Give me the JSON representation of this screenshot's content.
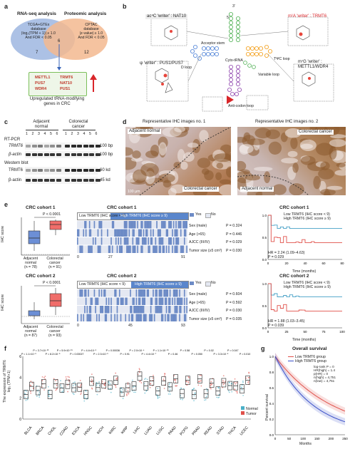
{
  "panels": {
    "a": {
      "label": "a",
      "rna_title": "RNA-seq analysis",
      "prot_title": "Proteomic analysis",
      "rna_db": [
        "TCGA+GTEx",
        "database"
      ],
      "rna_crit": [
        "|log₂(TPM + 1)| ≥ 1.0",
        "And FDR < 0.05"
      ],
      "prot_db": [
        "CPTAC",
        "database"
      ],
      "prot_crit": [
        "|z-value| ≥ 1.0",
        "And FDR < 0.05"
      ],
      "n_left": "7",
      "n_mid": "6",
      "n_right": "12",
      "genes_left": [
        "METTL1",
        "PUS7",
        "WDR4"
      ],
      "genes_right": [
        "TRMT6",
        "NAT10",
        "PUS1"
      ],
      "caption": [
        "Upregulated tRNA-modifying",
        "genes in CRC"
      ]
    },
    "b": {
      "label": "b",
      "ac4c": "ac⁴C 'writer' : NAT10",
      "m1a": "m¹A 'writer' : TRMT6",
      "psi": "ψ 'writer' : PUS1/PUS7",
      "m7g": [
        "m⁷G 'writer' :",
        "METTL1/WDR4"
      ],
      "acceptor": "Acceptor stem",
      "tpsi": "TΨC loop",
      "dloop": "D loop",
      "variable": "Variable loop",
      "anticodon": "Anti-codon loop",
      "center": "Cyto-tRNA",
      "three_prime": "3'",
      "five_prime": "5'"
    },
    "c": {
      "label": "c",
      "group1": [
        "Adjacent",
        "normal"
      ],
      "group2": [
        "Colorectal",
        "cancer"
      ],
      "lanes": [
        "1",
        "2",
        "3",
        "4",
        "5",
        "6",
        "1",
        "2",
        "3",
        "4",
        "5",
        "6"
      ],
      "rtpcr": "RT-PCR",
      "wb": "Western blot",
      "rows": [
        {
          "label": "TRMT6",
          "size": "100 bp"
        },
        {
          "label": "β-actin",
          "size": "100 bp"
        },
        {
          "label": "TRMT6",
          "size": "60 kd"
        },
        {
          "label": "β-actin",
          "size": "45 kd"
        }
      ]
    },
    "d": {
      "label": "d",
      "title1": "Representative IHC images no. 1",
      "title2": "Representative IHC images no. 2",
      "img1_adj": "Adjacent normal",
      "img1_crc": "Colorectal cancer",
      "img1_scale": "100 µm",
      "img2_crc": "Colorectal cancer",
      "img2_adj": "Adjacent normal"
    },
    "e": {
      "label": "e",
      "cohort1": {
        "title": "CRC cohort 1",
        "p": "P < 0.0001",
        "ylabel": "IHC score",
        "g1": [
          "Adjacent",
          "normal",
          "(n = 78)"
        ],
        "g2": [
          "Colorectal",
          "cancer",
          "(n = 91)"
        ],
        "heat_title": "CRC cohort 1",
        "low": "Low TRMT6 (IHC score < 9)",
        "high": "High TRMT6 (IHC score ≥ 9)",
        "legend_yes": "Yes",
        "legend_no": "No",
        "vars": [
          [
            "Sex (male)",
            "P = 0.324"
          ],
          [
            "Age (>65)",
            "P = 0.446"
          ],
          [
            "AJCC (III/IV)",
            "P = 0.029"
          ],
          [
            "Tumor size (≥5 cm³)",
            "P = 0.030"
          ]
        ],
        "axis": [
          "0",
          "27",
          "91"
        ],
        "km_title": "CRC cohort 1",
        "km_low": "Low TRMT6 (IHC score < 9)",
        "km_high": "High TRMT6 (IHC score ≥ 9)",
        "km_hr": "HR = 2.24 (1.09–4.63)",
        "km_p": "P = 0.029",
        "km_ylabel": "Overall survival",
        "km_xlabel": "Time (months)",
        "km_xticks": [
          "0",
          "20",
          "40",
          "60",
          "80"
        ]
      },
      "cohort2": {
        "title": "CRC cohort 2",
        "p": "P < 0.0001",
        "ylabel": "IHC score",
        "g1": [
          "Adjacent",
          "normal",
          "(n = 87)"
        ],
        "g2": [
          "Colorectal",
          "cancer",
          "(n = 93)"
        ],
        "heat_title": "CRC cohort 2",
        "low": "Low TRMT6 (IHC score < 9)",
        "high": "High TRMT6 (IHC score ≥ 9)",
        "legend_yes": "Yes",
        "legend_no": "No",
        "vars": [
          [
            "Sex (male)",
            "P = 0.604"
          ],
          [
            "Age (>65)",
            "P = 0.592"
          ],
          [
            "AJCC (III/IV)",
            "P = 0.030"
          ],
          [
            "Tumor size (≥5 cm³)",
            "P = 0.035"
          ]
        ],
        "axis": [
          "0",
          "45",
          "93"
        ],
        "km_title": "CRC cohort 2",
        "km_low": "Low TRMT6 (IHC score < 9)",
        "km_high": "High TRMT6 (IHC score ≥ 9)",
        "km_hr": "HR = 1.88 (1.03–3.45)",
        "km_p": "P = 0.039",
        "km_ylabel": "Overall survival",
        "km_xlabel": "Time (months)",
        "km_xticks": [
          "0",
          "25",
          "50",
          "75",
          "100"
        ]
      }
    },
    "f": {
      "label": "f",
      "ylabel": [
        "The expression of TRMT6",
        "log₂ (TPM+1)"
      ],
      "legend_normal": "Normal",
      "legend_tumor": "Tumor",
      "cancers": [
        "BLCA",
        "BRCA",
        "CHOL",
        "COAD",
        "ESCA",
        "HNSC",
        "KICH",
        "KIRC",
        "KIRP",
        "LIHC",
        "LUAD",
        "LUSC",
        "PAAD",
        "PCPG",
        "PRAD",
        "READ",
        "STAD",
        "THCA",
        "UCEC"
      ],
      "pvals": [
        "P = 1.1×10⁻⁶",
        "P = 3.7×10⁻¹³",
        "P = 8.2×10⁻⁶",
        "P = 5.9×10⁻¹⁵",
        "P = 0.00027",
        "P = 4.4×10⁻⁵",
        "P = 2.3×10⁻⁵",
        "P = 0.00036",
        "P = 0.91",
        "P = 2.0×10⁻⁴",
        "P = 4.4×10⁻⁷",
        "P = 1.1×10⁻¹⁶",
        "P = 0.46",
        "P = 0.58",
        "P = 0.050",
        "P = 0.02",
        "P = 3.3×10⁻⁵",
        "P = 0.047",
        "P = 0.010"
      ],
      "yticks": [
        "0",
        "2",
        "4",
        "6"
      ]
    },
    "g": {
      "label": "g",
      "title": "Overall survival",
      "legend_low": "Low TRMT6 group",
      "legend_high": "High TRMT6 group",
      "stats": [
        "log-rank P = 0",
        "HR(high) = 1.4",
        "p(HR) = 0",
        "n(high) = 4,751",
        "n(low) = 4,751"
      ],
      "ylabel": "Percent survival",
      "xlabel": "Months",
      "xticks": [
        "0",
        "50",
        "100",
        "150",
        "200",
        "250"
      ],
      "yticks": [
        "0.0",
        "0.2",
        "0.4",
        "0.6",
        "0.8",
        "1.0"
      ]
    }
  },
  "colors": {
    "rna_venn": "#9db6e0",
    "prot_venn": "#f3b98f",
    "low_group": "#6c8fd6",
    "high_group": "#e15a4f",
    "normal_box": "#4bb0c8",
    "tumor_box": "#e0504a",
    "heat_yes": "#6d8bc6",
    "heat_no": "#e4e8f2"
  }
}
